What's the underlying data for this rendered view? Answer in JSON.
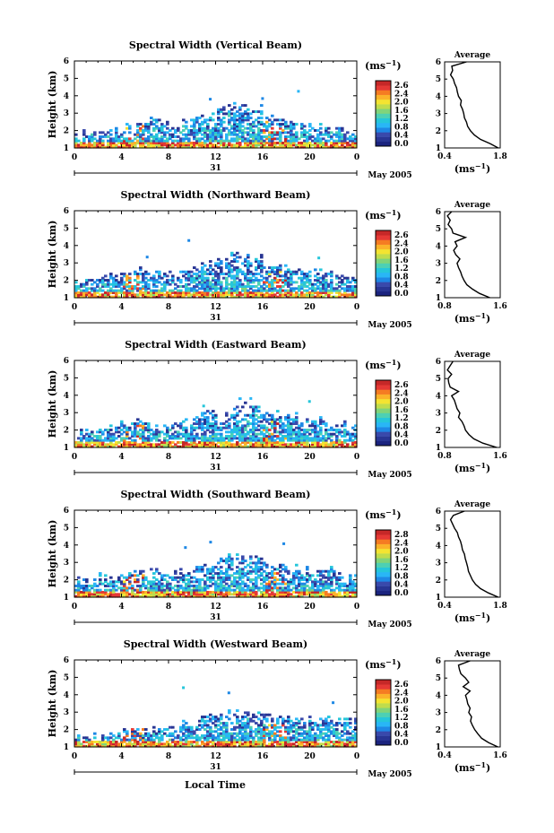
{
  "figure": {
    "shared_xlabel": "Local Time",
    "date_label": "May 2005",
    "day_label": "31",
    "colorbar_unit": "(ms",
    "colorbar_unit_exp": "−1",
    "colorbar_unit_close": ")",
    "avg_title": "Average",
    "avg_xlabel": "(ms",
    "avg_xlabel_exp": "−1",
    "avg_xlabel_close": ")",
    "height_label": "Height (km)"
  },
  "colors": {
    "colorscale": [
      "#1a237e",
      "#283593",
      "#3949ab",
      "#1e88e5",
      "#29b6f6",
      "#26c6da",
      "#4dd0b4",
      "#81d47a",
      "#c0dc4c",
      "#f4e431",
      "#fbb32a",
      "#f57c22",
      "#e53935",
      "#c62828"
    ]
  },
  "chart_data": [
    {
      "type": "heatmap",
      "title": "Spectral Width (Vertical Beam)",
      "beam": "vertical",
      "xlim": [
        0,
        24
      ],
      "ylim": [
        1,
        6
      ],
      "xticks": [
        "0",
        "4",
        "8",
        "12",
        "16",
        "20",
        "0"
      ],
      "yticks": [
        "1",
        "2",
        "3",
        "4",
        "5",
        "6"
      ],
      "colorbar_ticks": [
        "2.6",
        "2.4",
        "2.0",
        "1.6",
        "1.2",
        "0.8",
        "0.4",
        "0.0"
      ],
      "avg_xticks": [
        "0.4",
        "1.8"
      ],
      "avg_xlim": [
        0.4,
        1.8
      ],
      "avg_profile": {
        "height_km": [
          1,
          1.25,
          1.5,
          1.75,
          2,
          2.25,
          2.5,
          2.75,
          3,
          3.25,
          3.5,
          3.75,
          4,
          4.25,
          4.5,
          4.75,
          5,
          5.25,
          5.5,
          5.75,
          6
        ],
        "width": [
          1.75,
          1.55,
          1.3,
          1.15,
          1.05,
          0.98,
          0.95,
          0.9,
          0.88,
          0.85,
          0.8,
          0.82,
          0.75,
          0.72,
          0.7,
          0.65,
          0.62,
          0.55,
          0.6,
          0.58,
          0.95
        ]
      },
      "top_height_km": [
        1.8,
        1.9,
        2.0,
        2.0,
        2.2,
        2.5,
        2.6,
        2.4,
        2.3,
        2.6,
        2.8,
        2.9,
        3.2,
        3.5,
        3.4,
        3.3,
        2.8,
        2.6,
        2.5,
        2.3,
        2.2,
        2.1,
        2.0,
        1.9
      ]
    },
    {
      "type": "heatmap",
      "title": "Spectral Width (Northward Beam)",
      "beam": "northward",
      "xlim": [
        0,
        24
      ],
      "ylim": [
        1,
        6
      ],
      "xticks": [
        "0",
        "4",
        "8",
        "12",
        "16",
        "20",
        "0"
      ],
      "yticks": [
        "1",
        "2",
        "3",
        "4",
        "5",
        "6"
      ],
      "colorbar_ticks": [
        "2.6",
        "2.4",
        "2.0",
        "1.6",
        "1.2",
        "0.8",
        "0.4",
        "0.0"
      ],
      "avg_xticks": [
        "0.8",
        "1.6"
      ],
      "avg_xlim": [
        0.8,
        1.6
      ],
      "avg_profile": {
        "height_km": [
          1,
          1.25,
          1.5,
          1.75,
          2,
          2.25,
          2.5,
          2.75,
          3,
          3.25,
          3.5,
          3.75,
          4,
          4.25,
          4.5,
          4.75,
          5,
          5.25,
          5.5,
          5.75,
          6
        ],
        "width": [
          1.45,
          1.3,
          1.2,
          1.12,
          1.08,
          1.05,
          1.03,
          1.0,
          0.98,
          1.02,
          0.96,
          0.93,
          0.98,
          0.95,
          1.1,
          0.92,
          0.9,
          0.85,
          0.88,
          0.84,
          0.9
        ]
      },
      "top_height_km": [
        2.0,
        2.0,
        2.1,
        2.3,
        2.4,
        2.6,
        2.5,
        2.4,
        2.3,
        2.6,
        2.9,
        3.0,
        3.2,
        3.5,
        3.4,
        3.3,
        3.0,
        2.8,
        2.7,
        2.6,
        2.5,
        2.4,
        2.2,
        2.1
      ]
    },
    {
      "type": "heatmap",
      "title": "Spectral Width (Eastward Beam)",
      "beam": "eastward",
      "xlim": [
        0,
        24
      ],
      "ylim": [
        1,
        6
      ],
      "xticks": [
        "0",
        "4",
        "8",
        "12",
        "16",
        "20",
        "0"
      ],
      "yticks": [
        "1",
        "2",
        "3",
        "4",
        "5",
        "6"
      ],
      "colorbar_ticks": [
        "2.6",
        "2.4",
        "2.0",
        "1.6",
        "1.2",
        "0.8",
        "0.4",
        "0.0"
      ],
      "avg_xticks": [
        "0.8",
        "1.6"
      ],
      "avg_xlim": [
        0.8,
        1.6
      ],
      "avg_profile": {
        "height_km": [
          1,
          1.25,
          1.5,
          1.75,
          2,
          2.25,
          2.5,
          2.75,
          3,
          3.25,
          3.5,
          3.75,
          4,
          4.25,
          4.5,
          4.75,
          5,
          5.25,
          5.5,
          5.75,
          6
        ],
        "width": [
          1.55,
          1.35,
          1.22,
          1.15,
          1.1,
          1.08,
          1.05,
          1.0,
          1.02,
          0.98,
          0.96,
          0.94,
          0.9,
          1.0,
          0.88,
          0.86,
          0.85,
          0.9,
          0.84,
          0.88,
          0.92
        ]
      },
      "top_height_km": [
        1.9,
        2.0,
        2.1,
        2.2,
        2.3,
        2.5,
        2.4,
        2.3,
        2.2,
        2.5,
        2.8,
        3.0,
        3.1,
        3.4,
        3.6,
        3.4,
        3.1,
        2.9,
        2.8,
        2.6,
        2.5,
        2.4,
        2.3,
        2.2
      ]
    },
    {
      "type": "heatmap",
      "title": "Spectral Width (Southward Beam)",
      "beam": "southward",
      "xlim": [
        0,
        24
      ],
      "ylim": [
        1,
        6
      ],
      "xticks": [
        "0",
        "4",
        "8",
        "12",
        "16",
        "20",
        "0"
      ],
      "yticks": [
        "1",
        "2",
        "3",
        "4",
        "5",
        "6"
      ],
      "colorbar_ticks": [
        "2.8",
        "2.4",
        "2.0",
        "1.6",
        "1.2",
        "0.8",
        "0.4",
        "0.0"
      ],
      "avg_xticks": [
        "0.4",
        "1.8"
      ],
      "avg_xlim": [
        0.4,
        1.8
      ],
      "avg_profile": {
        "height_km": [
          1,
          1.25,
          1.5,
          1.75,
          2,
          2.25,
          2.5,
          2.75,
          3,
          3.25,
          3.5,
          3.75,
          4,
          4.25,
          4.5,
          4.75,
          5,
          5.25,
          5.5,
          5.75,
          6
        ],
        "width": [
          1.75,
          1.5,
          1.3,
          1.18,
          1.1,
          1.05,
          1.0,
          0.98,
          0.95,
          0.92,
          0.9,
          0.85,
          0.83,
          0.8,
          0.75,
          0.72,
          0.65,
          0.6,
          0.55,
          0.62,
          0.9
        ]
      },
      "top_height_km": [
        2.0,
        2.1,
        2.2,
        2.3,
        2.4,
        2.6,
        2.5,
        2.4,
        2.3,
        2.6,
        2.9,
        3.0,
        3.2,
        3.5,
        3.4,
        3.3,
        3.0,
        2.8,
        2.7,
        2.6,
        2.5,
        2.6,
        2.4,
        2.3
      ]
    },
    {
      "type": "heatmap",
      "title": "Spectral Width (Westward Beam)",
      "beam": "westward",
      "xlim": [
        0,
        24
      ],
      "ylim": [
        1,
        6
      ],
      "xticks": [
        "0",
        "4",
        "8",
        "12",
        "16",
        "20",
        "0"
      ],
      "yticks": [
        "1",
        "2",
        "3",
        "4",
        "5",
        "6"
      ],
      "colorbar_ticks": [
        "2.6",
        "2.4",
        "2.0",
        "1.6",
        "1.2",
        "0.8",
        "0.4",
        "0.0"
      ],
      "avg_xticks": [
        "0.4",
        "1.6"
      ],
      "avg_xlim": [
        0.4,
        1.6
      ],
      "avg_profile": {
        "height_km": [
          1,
          1.25,
          1.5,
          1.75,
          2,
          2.25,
          2.5,
          2.75,
          3,
          3.25,
          3.5,
          3.75,
          4,
          4.25,
          4.5,
          4.75,
          5,
          5.25,
          5.5,
          5.75,
          6
        ],
        "width": [
          1.55,
          1.35,
          1.2,
          1.12,
          1.05,
          1.0,
          0.96,
          0.98,
          0.92,
          0.95,
          0.9,
          0.88,
          0.85,
          0.95,
          0.8,
          0.92,
          0.85,
          0.75,
          0.72,
          0.7,
          0.95
        ]
      },
      "top_height_km": [
        1.5,
        1.6,
        1.7,
        1.8,
        1.9,
        2.0,
        2.1,
        2.0,
        2.1,
        2.3,
        2.6,
        2.8,
        2.9,
        3.0,
        3.1,
        3.0,
        2.9,
        2.8,
        2.7,
        2.7,
        2.6,
        2.7,
        2.6,
        2.5
      ]
    }
  ]
}
